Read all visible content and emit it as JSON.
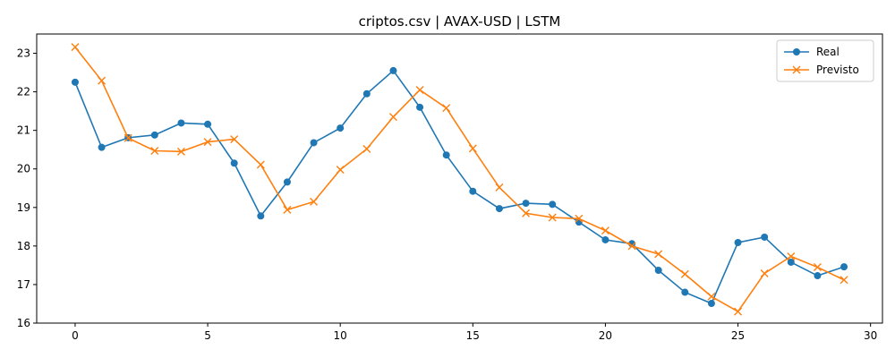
{
  "chart_data": {
    "type": "line",
    "title": "criptos.csv | AVAX-USD | LSTM",
    "xlabel": "",
    "ylabel": "",
    "xlim": [
      -1.45,
      30.45
    ],
    "ylim": [
      16.0,
      23.5
    ],
    "xticks": [
      0,
      5,
      10,
      15,
      20,
      25,
      30
    ],
    "yticks": [
      16,
      17,
      18,
      19,
      20,
      21,
      22,
      23
    ],
    "grid": false,
    "legend_position": "upper right",
    "x": [
      0,
      1,
      2,
      3,
      4,
      5,
      6,
      7,
      8,
      9,
      10,
      11,
      12,
      13,
      14,
      15,
      16,
      17,
      18,
      19,
      20,
      21,
      22,
      23,
      24,
      25,
      26,
      27,
      28,
      29
    ],
    "series": [
      {
        "name": "Real",
        "color": "#1f77b4",
        "marker": "circle",
        "values": [
          22.25,
          20.56,
          20.81,
          20.88,
          21.19,
          21.16,
          20.15,
          18.78,
          19.66,
          20.68,
          21.06,
          21.95,
          22.55,
          21.6,
          20.36,
          19.42,
          18.97,
          19.11,
          19.08,
          18.62,
          18.16,
          18.06,
          17.37,
          16.8,
          16.51,
          18.09,
          18.23,
          17.58,
          17.23,
          17.46
        ]
      },
      {
        "name": "Previsto",
        "color": "#ff7f0e",
        "marker": "x",
        "values": [
          23.16,
          22.29,
          20.8,
          20.47,
          20.45,
          20.7,
          20.77,
          20.11,
          18.94,
          19.15,
          19.98,
          20.52,
          21.35,
          22.05,
          21.58,
          20.53,
          19.52,
          18.85,
          18.74,
          18.71,
          18.4,
          18.0,
          17.79,
          17.27,
          16.69,
          16.3,
          17.29,
          17.73,
          17.45,
          17.12
        ]
      }
    ]
  }
}
